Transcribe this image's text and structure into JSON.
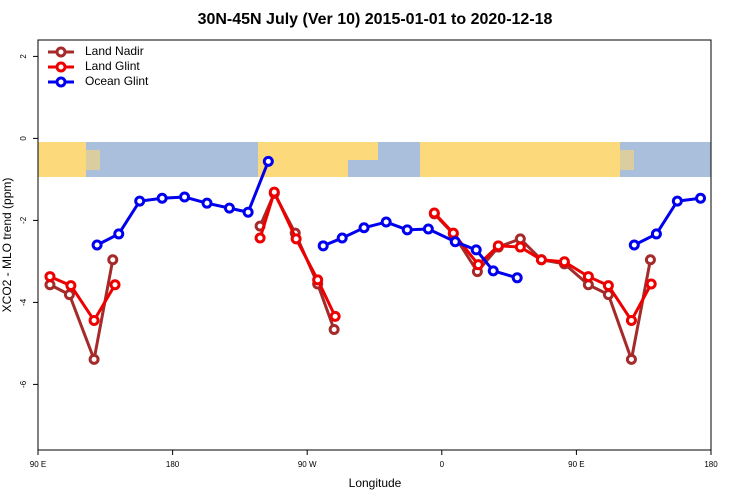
{
  "chart_data": {
    "type": "line",
    "title": "30N-45N July (Ver 10)   2015-01-01 to 2020-12-18",
    "x_label": "Longitude",
    "y_label": "XCO2 - MLO trend (ppm)",
    "xlim": [
      90,
      540
    ],
    "xticks": [
      {
        "value": 90,
        "label": "90 E"
      },
      180,
      {
        "value": 270,
        "label": "90 W"
      },
      {
        "value": 360,
        "label": "0"
      },
      {
        "value": 450,
        "label": "90 E"
      },
      {
        "value": 540,
        "label": "180"
      }
    ],
    "ylim": [
      -7.6,
      2.4
    ],
    "yticks": [
      2,
      0,
      -2,
      -4,
      -6
    ],
    "legend": "topleft",
    "series": [
      {
        "name": "Land Nadir",
        "color": "#a52a2a",
        "x": [
          98,
          111,
          127.5,
          140,
          null,
          238.5,
          248,
          262,
          277,
          288,
          null,
          355,
          367.7,
          383.8,
          397.8,
          412.5,
          426.6,
          442,
          458,
          471.4,
          486.8,
          499.5
        ],
        "values": [
          -3.57,
          -3.81,
          -5.39,
          -2.96,
          null,
          -2.14,
          -1.34,
          -2.31,
          -3.55,
          -4.66,
          null,
          -1.84,
          -2.33,
          -3.25,
          -2.65,
          -2.45,
          -2.96,
          -3.06,
          -3.57,
          -3.81,
          -5.39,
          -2.96
        ]
      },
      {
        "name": "Land Glint",
        "color": "#ee0000",
        "x": [
          98,
          112,
          127.5,
          141.5,
          null,
          238.5,
          248,
          262.6,
          277,
          288.7,
          null,
          355,
          367.7,
          384.4,
          397.8,
          412.5,
          426.6,
          442,
          458,
          471.4,
          486.8,
          500
        ],
        "values": [
          -3.37,
          -3.59,
          -4.44,
          -3.57,
          null,
          -2.43,
          -1.31,
          -2.45,
          -3.45,
          -4.34,
          null,
          -1.82,
          -2.31,
          -3.08,
          -2.62,
          -2.65,
          -2.96,
          -3.01,
          -3.37,
          -3.59,
          -4.44,
          -3.55
        ]
      },
      {
        "name": "Ocean Glint",
        "color": "#0000ee",
        "x": [
          129.5,
          144,
          158,
          173,
          188,
          203,
          218,
          230.5,
          244,
          null,
          280.7,
          293.4,
          308,
          322.8,
          336.9,
          351,
          369,
          383,
          394.4,
          410.4,
          null,
          488.7,
          503.5,
          517.5,
          533
        ],
        "values": [
          -2.6,
          -2.33,
          -1.53,
          -1.46,
          -1.43,
          -1.58,
          -1.7,
          -1.8,
          -0.56,
          null,
          -2.62,
          -2.43,
          -2.18,
          -2.04,
          -2.23,
          -2.21,
          -2.52,
          -2.72,
          -3.23,
          -3.4,
          null,
          -2.6,
          -2.33,
          -1.53,
          -1.46
        ]
      }
    ]
  }
}
